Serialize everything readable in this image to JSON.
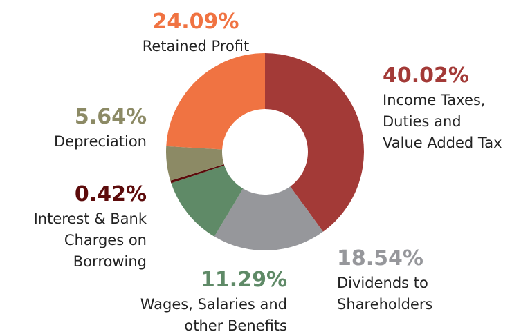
{
  "chart_data": {
    "type": "donut",
    "categories": [
      "Income Taxes,\nDuties and\nValue Added Tax",
      "Dividends to\nShareholders",
      "Wages, Salaries and\nother Benefits",
      "Interest & Bank\nCharges on\nBorrowing",
      "Depreciation",
      "Retained Profit"
    ],
    "values": [
      40.02,
      18.54,
      11.29,
      0.42,
      5.64,
      24.09
    ],
    "value_labels": [
      "40.02%",
      "18.54%",
      "11.29%",
      "0.42%",
      "5.64%",
      "24.09%"
    ],
    "colors": [
      "#a33a37",
      "#96979b",
      "#5f8a67",
      "#5c0b0b",
      "#8c8a65",
      "#f07342"
    ]
  }
}
